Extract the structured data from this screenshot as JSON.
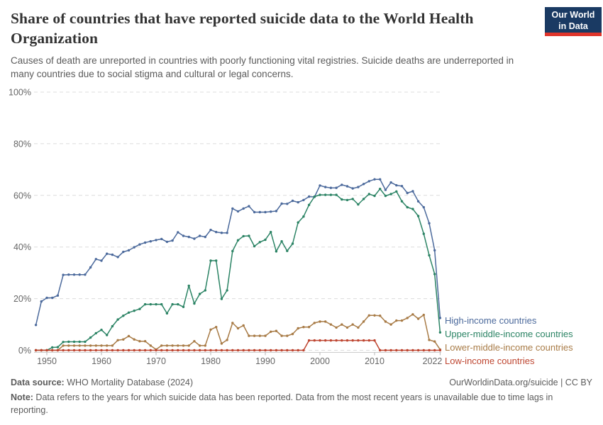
{
  "header": {
    "title": "Share of countries that have reported suicide data to the World Health Organization",
    "subtitle": "Causes of death are unreported in countries with poorly functioning vital registries. Suicide deaths are underreported in many countries due to social stigma and cultural or legal concerns.",
    "logo": {
      "line1": "Our World",
      "line2": "in Data"
    }
  },
  "chart_data": {
    "type": "line",
    "title": "Share of countries that have reported suicide data to the World Health Organization",
    "xlabel": "",
    "ylabel": "",
    "ylim": [
      0,
      100
    ],
    "xlim": [
      1948,
      2022
    ],
    "grid": "horizontal-dashed",
    "legend_position": "right of line ends",
    "y_ticks": [
      {
        "value": 0,
        "label": "0%"
      },
      {
        "value": 20,
        "label": "20%"
      },
      {
        "value": 40,
        "label": "40%"
      },
      {
        "value": 60,
        "label": "60%"
      },
      {
        "value": 80,
        "label": "80%"
      },
      {
        "value": 100,
        "label": "100%"
      }
    ],
    "x_ticks": [
      {
        "year": 1950,
        "label": "1950"
      },
      {
        "year": 1960,
        "label": "1960"
      },
      {
        "year": 1970,
        "label": "1970"
      },
      {
        "year": 1980,
        "label": "1980"
      },
      {
        "year": 1990,
        "label": "1990"
      },
      {
        "year": 2000,
        "label": "2000"
      },
      {
        "year": 2010,
        "label": "2010"
      },
      {
        "year": 2022,
        "label": "2022"
      }
    ],
    "x": [
      1948,
      1949,
      1950,
      1951,
      1952,
      1953,
      1954,
      1955,
      1956,
      1957,
      1958,
      1959,
      1960,
      1961,
      1962,
      1963,
      1964,
      1965,
      1966,
      1967,
      1968,
      1969,
      1970,
      1971,
      1972,
      1973,
      1974,
      1975,
      1976,
      1977,
      1978,
      1979,
      1980,
      1981,
      1982,
      1983,
      1984,
      1985,
      1986,
      1987,
      1988,
      1989,
      1990,
      1991,
      1992,
      1993,
      1994,
      1995,
      1996,
      1997,
      1998,
      1999,
      2000,
      2001,
      2002,
      2003,
      2004,
      2005,
      2006,
      2007,
      2008,
      2009,
      2010,
      2011,
      2012,
      2013,
      2014,
      2015,
      2016,
      2017,
      2018,
      2019,
      2020,
      2021,
      2022
    ],
    "series": [
      {
        "name": "High-income countries",
        "color": "#4C6A9C",
        "values": [
          9.8,
          18.9,
          20.3,
          20.3,
          21.2,
          29.2,
          29.3,
          29.3,
          29.3,
          29.3,
          32.1,
          35.3,
          34.7,
          37.4,
          37,
          36.1,
          38.1,
          38.7,
          39.9,
          41,
          41.7,
          42.2,
          42.7,
          43.1,
          42,
          42.5,
          45.7,
          44.3,
          43.9,
          43.2,
          44.3,
          43.9,
          46.6,
          45.8,
          45.5,
          45.5,
          54.9,
          53.8,
          54.9,
          55.8,
          53.5,
          53.5,
          53.5,
          53.7,
          53.9,
          56.8,
          56.7,
          57.9,
          57.3,
          58.2,
          59.5,
          59.4,
          63.8,
          63.2,
          62.9,
          62.9,
          64.1,
          63.5,
          62.7,
          63.2,
          64.4,
          65.5,
          66.2,
          66.2,
          62.1,
          65,
          63.9,
          63.6,
          60.9,
          61.6,
          57.7,
          55.4,
          49.2,
          38.7,
          12.5
        ]
      },
      {
        "name": "Upper-middle-income countries",
        "color": "#2C8465",
        "values": [
          0,
          0,
          0,
          1.1,
          1.2,
          3.2,
          3.3,
          3.3,
          3.3,
          3.3,
          4.9,
          6.6,
          7.9,
          5.9,
          9.3,
          11.9,
          13.4,
          14.6,
          15.3,
          16,
          17.8,
          17.8,
          17.8,
          17.8,
          14.3,
          17.8,
          17.8,
          16.8,
          25,
          18.1,
          21.8,
          23.2,
          34.7,
          34.7,
          19.9,
          23.2,
          38.4,
          42.6,
          44.2,
          44.3,
          40.3,
          41.9,
          42.8,
          45.8,
          38.3,
          42.2,
          38.5,
          41.3,
          49.5,
          51.8,
          56.3,
          59.5,
          60.2,
          60.2,
          60.2,
          60.2,
          58.4,
          58.2,
          58.6,
          56.5,
          58.6,
          60.5,
          59.8,
          62.5,
          59.8,
          60.5,
          61.5,
          57.7,
          55.4,
          54.7,
          52,
          45.1,
          36.8,
          29.5,
          6.9
        ]
      },
      {
        "name": "Lower-middle-income countries",
        "color": "#A87B46",
        "values": [
          0,
          0,
          0,
          0,
          0,
          1.8,
          1.8,
          1.8,
          1.8,
          1.8,
          1.8,
          1.8,
          1.8,
          1.8,
          1.8,
          3.9,
          4.2,
          5.5,
          4.2,
          3.5,
          3.5,
          1.8,
          0.3,
          1.8,
          1.8,
          1.8,
          1.8,
          1.8,
          1.8,
          3.5,
          1.8,
          1.8,
          8,
          9,
          2.6,
          4,
          10.6,
          8.5,
          9.6,
          5.6,
          5.6,
          5.6,
          5.6,
          7.2,
          7.5,
          5.6,
          5.6,
          6.3,
          8.5,
          9,
          9,
          10.6,
          11.1,
          11.1,
          10,
          8.8,
          10,
          8.8,
          10,
          8.8,
          11.1,
          13.5,
          13.5,
          13.4,
          11.1,
          10,
          11.5,
          11.5,
          12.5,
          13.9,
          12.2,
          13.7,
          4,
          3.4,
          0.3
        ]
      },
      {
        "name": "Low-income countries",
        "color": "#BE4530",
        "values": [
          0,
          0,
          0,
          0,
          0,
          0,
          0,
          0,
          0,
          0,
          0,
          0,
          0,
          0,
          0,
          0,
          0,
          0,
          0,
          0,
          0,
          0,
          0,
          0,
          0,
          0,
          0,
          0,
          0,
          0,
          0,
          0,
          0,
          0,
          0,
          0,
          0,
          0,
          0,
          0,
          0,
          0,
          0,
          0,
          0,
          0,
          0,
          0,
          0,
          0,
          3.8,
          3.8,
          3.8,
          3.8,
          3.8,
          3.8,
          3.8,
          3.8,
          3.8,
          3.8,
          3.8,
          3.8,
          3.8,
          0,
          0,
          0,
          0,
          0,
          0,
          0,
          0,
          0,
          0,
          0,
          0
        ]
      }
    ]
  },
  "footer": {
    "source_label": "Data source:",
    "source_text": " WHO Mortality Database (2024)",
    "license_text": "OurWorldinData.org/suicide | CC BY",
    "note_label": "Note:",
    "note_text": " Data refers to the years for which suicide data has been reported. Data from the most recent years is unavailable due to time lags in reporting."
  }
}
